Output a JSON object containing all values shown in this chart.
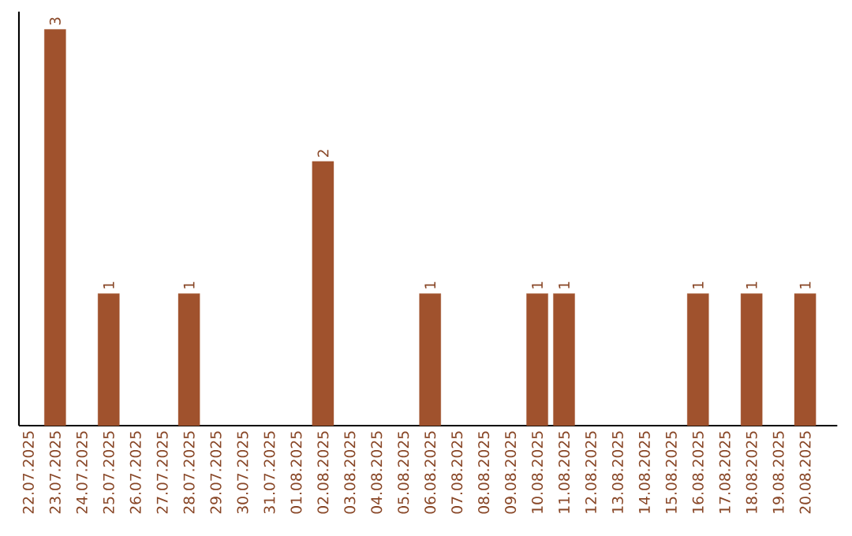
{
  "chart_data": {
    "type": "bar",
    "color": "#a0522d",
    "data_labels": true,
    "tick_labels": "x",
    "categories": [
      "22.07.2025",
      "23.07.2025",
      "24.07.2025",
      "25.07.2025",
      "26.07.2025",
      "27.07.2025",
      "28.07.2025",
      "29.07.2025",
      "30.07.2025",
      "31.07.2025",
      "01.08.2025",
      "02.08.2025",
      "03.08.2025",
      "04.08.2025",
      "05.08.2025",
      "06.08.2025",
      "07.08.2025",
      "08.08.2025",
      "09.08.2025",
      "10.08.2025",
      "11.08.2025",
      "12.08.2025",
      "13.08.2025",
      "14.08.2025",
      "15.08.2025",
      "16.08.2025",
      "17.08.2025",
      "18.08.2025",
      "19.08.2025",
      "20.08.2025"
    ],
    "values": [
      null,
      3,
      null,
      1,
      null,
      null,
      1,
      null,
      null,
      null,
      null,
      2,
      null,
      null,
      null,
      1,
      null,
      null,
      null,
      1,
      1,
      null,
      null,
      null,
      null,
      1,
      null,
      1,
      null,
      1
    ]
  }
}
